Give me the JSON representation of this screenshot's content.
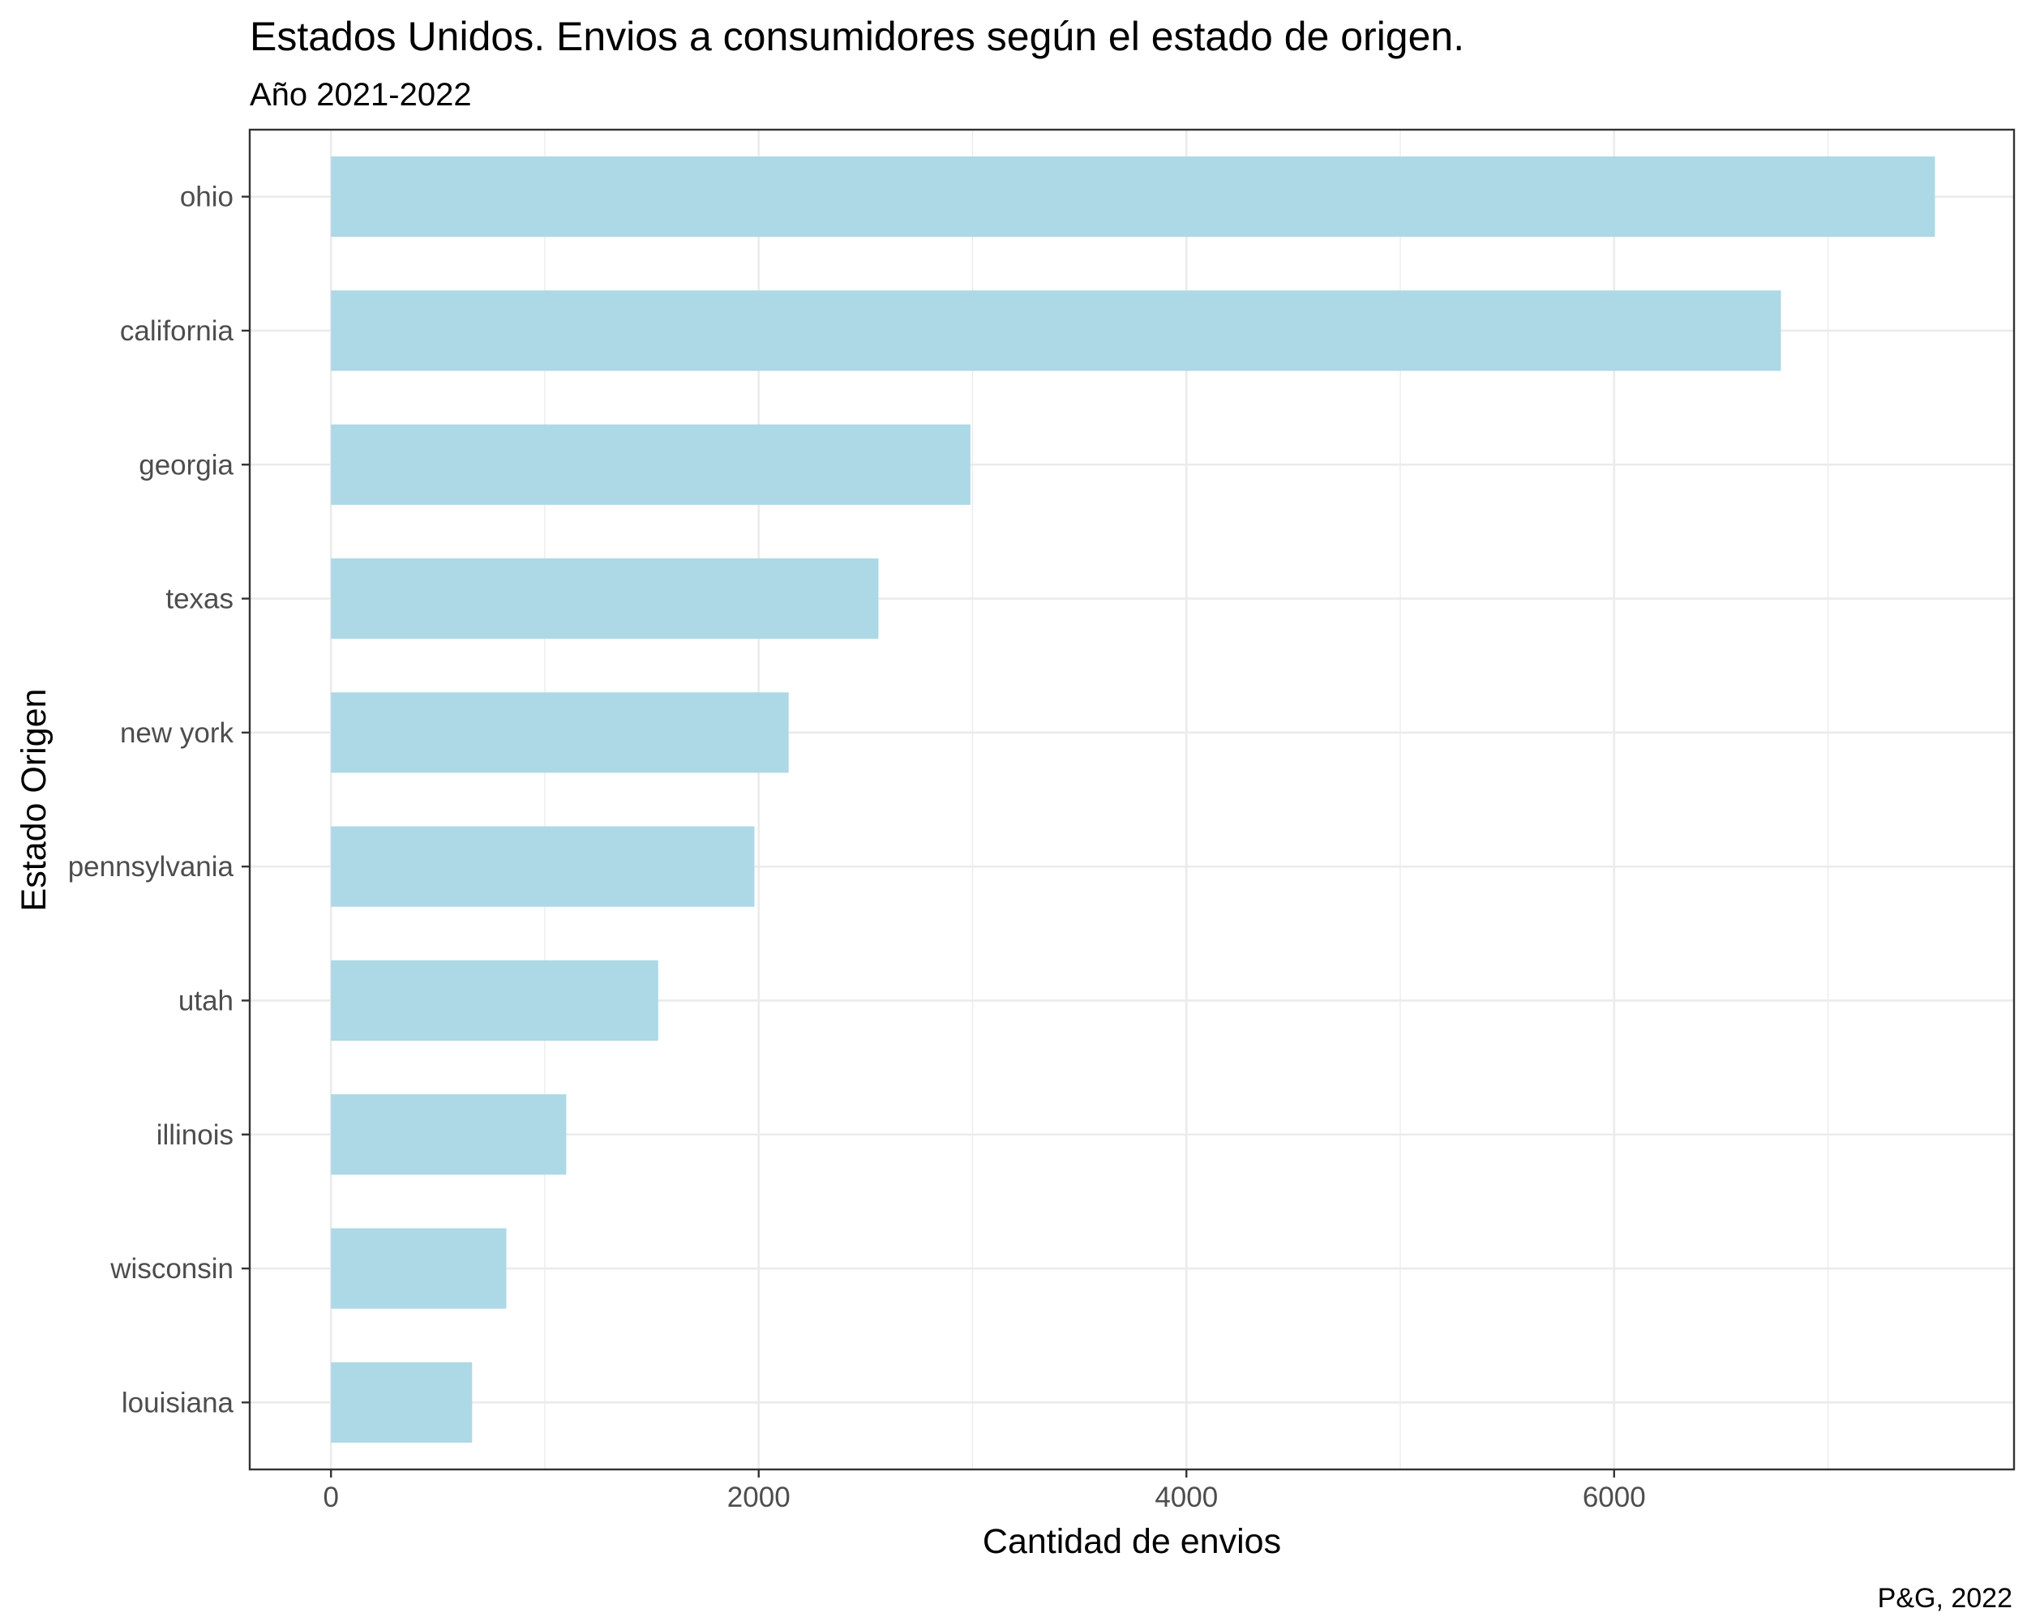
{
  "chart_data": {
    "type": "bar",
    "orientation": "horizontal",
    "title": "Estados Unidos. Envios a consumidores según el estado de origen.",
    "subtitle": "Año 2021-2022",
    "caption": "P&G, 2022",
    "xlabel": "Cantidad de envios",
    "ylabel": "Estado Origen",
    "categories": [
      "ohio",
      "california",
      "georgia",
      "texas",
      "new york",
      "pennsylvania",
      "utah",
      "illinois",
      "wisconsin",
      "louisiana"
    ],
    "values": [
      7500,
      6780,
      2990,
      2560,
      2140,
      1980,
      1530,
      1100,
      820,
      660
    ],
    "xlim": [
      -380,
      7870
    ],
    "xticks": [
      0,
      2000,
      4000,
      6000
    ],
    "xtick_labels": [
      "0",
      "2000",
      "4000",
      "6000"
    ],
    "grid": true,
    "bar_color": "#add8e6"
  }
}
